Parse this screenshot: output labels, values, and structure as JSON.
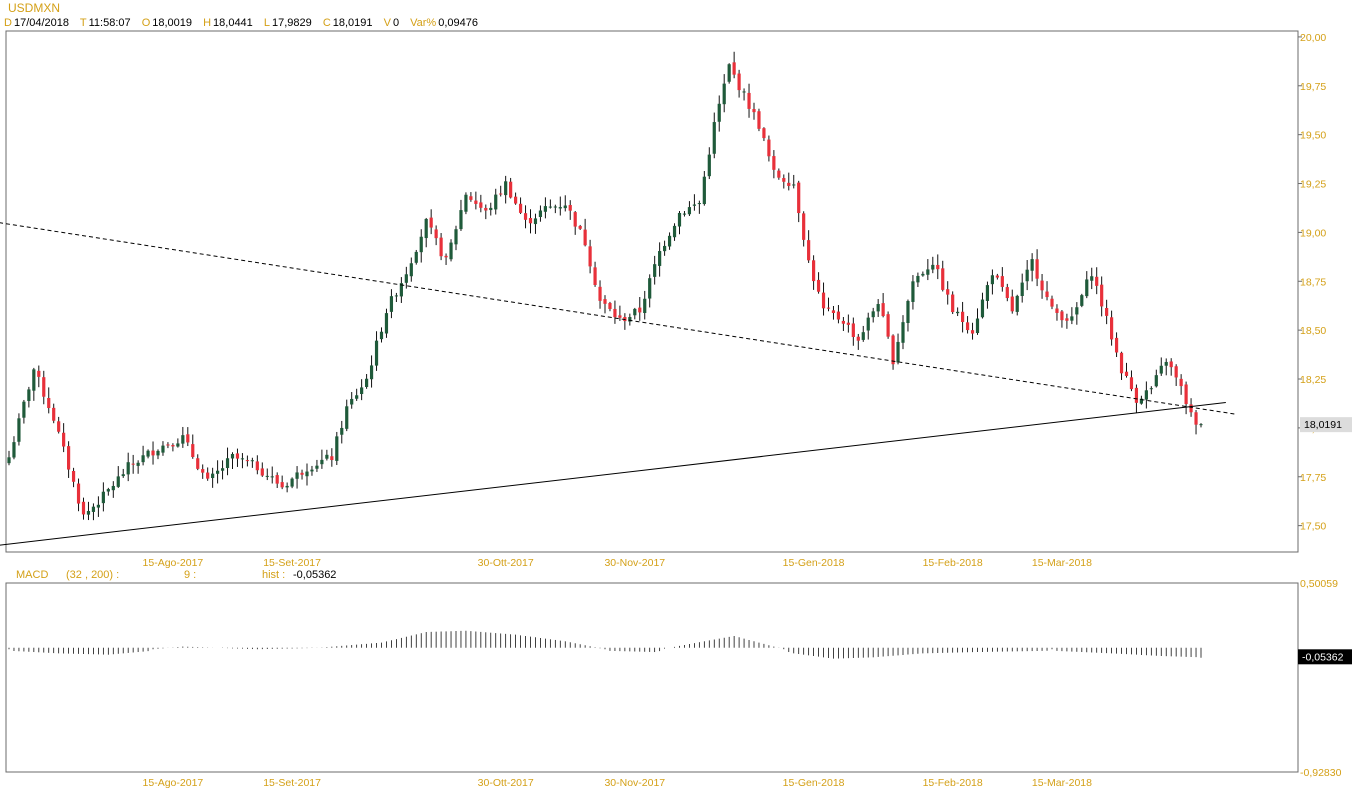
{
  "header": {
    "symbol": "USDMXN",
    "fields": [
      {
        "key": "D",
        "value": "17/04/2018"
      },
      {
        "key": "T",
        "value": "11:58:07"
      },
      {
        "key": "O",
        "value": "18,0019"
      },
      {
        "key": "H",
        "value": "18,0441"
      },
      {
        "key": "L",
        "value": "17,9829"
      },
      {
        "key": "C",
        "value": "18,0191"
      },
      {
        "key": "V",
        "value": "0"
      },
      {
        "key": "Var%",
        "value": "0,09476"
      }
    ]
  },
  "macd_header": {
    "label": "MACD",
    "params": "(32 , 200) :",
    "signal": "9 :",
    "hist_label": "hist :",
    "hist_value": "-0,05362"
  },
  "colors": {
    "up": "#1f5a3a",
    "down": "#e8303a",
    "tick_label": "#d4a017",
    "panel_border": "#6b6b6b",
    "last_price_bg": "#dcdcdc",
    "macd_last_bg": "#000000"
  },
  "chart_data": [
    {
      "type": "candlestick",
      "title": "USDMXN",
      "ylim": [
        17.36,
        20.02
      ],
      "yticks": [
        "20,00",
        "19,75",
        "19,50",
        "19,25",
        "19,00",
        "18,75",
        "18,50",
        "18,25",
        "18,00",
        "17,75",
        "17,50"
      ],
      "ytick_values": [
        20.0,
        19.75,
        19.5,
        19.25,
        19.0,
        18.75,
        18.5,
        18.25,
        18.0,
        17.75,
        17.5
      ],
      "x_tick_labels": [
        "15-Ago-2017",
        "15-Set-2017",
        "30-Ott-2017",
        "30-Nov-2017",
        "15-Gen-2018",
        "15-Feb-2018",
        "15-Mar-2018"
      ],
      "x_tick_index": [
        33,
        57,
        100,
        126,
        162,
        190,
        212
      ],
      "last_price": "18,0191",
      "last_price_value": 18.0191,
      "close_path": [
        {
          "i": 0,
          "c": 17.85
        },
        {
          "i": 5,
          "c": 18.3
        },
        {
          "i": 9,
          "c": 18.05
        },
        {
          "i": 15,
          "c": 17.55
        },
        {
          "i": 19,
          "c": 17.65
        },
        {
          "i": 24,
          "c": 17.8
        },
        {
          "i": 30,
          "c": 17.9
        },
        {
          "i": 35,
          "c": 17.95
        },
        {
          "i": 40,
          "c": 17.72
        },
        {
          "i": 45,
          "c": 17.85
        },
        {
          "i": 50,
          "c": 17.8
        },
        {
          "i": 55,
          "c": 17.7
        },
        {
          "i": 60,
          "c": 17.8
        },
        {
          "i": 65,
          "c": 17.85
        },
        {
          "i": 68,
          "c": 18.1
        },
        {
          "i": 72,
          "c": 18.25
        },
        {
          "i": 76,
          "c": 18.6
        },
        {
          "i": 80,
          "c": 18.8
        },
        {
          "i": 84,
          "c": 19.05
        },
        {
          "i": 88,
          "c": 18.85
        },
        {
          "i": 92,
          "c": 19.2
        },
        {
          "i": 96,
          "c": 19.1
        },
        {
          "i": 100,
          "c": 19.25
        },
        {
          "i": 104,
          "c": 19.05
        },
        {
          "i": 108,
          "c": 19.12
        },
        {
          "i": 112,
          "c": 19.15
        },
        {
          "i": 116,
          "c": 18.95
        },
        {
          "i": 119,
          "c": 18.65
        },
        {
          "i": 123,
          "c": 18.55
        },
        {
          "i": 127,
          "c": 18.6
        },
        {
          "i": 131,
          "c": 18.9
        },
        {
          "i": 135,
          "c": 19.1
        },
        {
          "i": 139,
          "c": 19.15
        },
        {
          "i": 142,
          "c": 19.55
        },
        {
          "i": 145,
          "c": 19.85
        },
        {
          "i": 148,
          "c": 19.7
        },
        {
          "i": 151,
          "c": 19.55
        },
        {
          "i": 154,
          "c": 19.3
        },
        {
          "i": 158,
          "c": 19.25
        },
        {
          "i": 161,
          "c": 18.85
        },
        {
          "i": 164,
          "c": 18.6
        },
        {
          "i": 168,
          "c": 18.55
        },
        {
          "i": 171,
          "c": 18.45
        },
        {
          "i": 175,
          "c": 18.65
        },
        {
          "i": 178,
          "c": 18.35
        },
        {
          "i": 182,
          "c": 18.75
        },
        {
          "i": 186,
          "c": 18.85
        },
        {
          "i": 190,
          "c": 18.6
        },
        {
          "i": 194,
          "c": 18.5
        },
        {
          "i": 198,
          "c": 18.8
        },
        {
          "i": 202,
          "c": 18.6
        },
        {
          "i": 206,
          "c": 18.85
        },
        {
          "i": 210,
          "c": 18.6
        },
        {
          "i": 214,
          "c": 18.55
        },
        {
          "i": 218,
          "c": 18.8
        },
        {
          "i": 221,
          "c": 18.55
        },
        {
          "i": 224,
          "c": 18.3
        },
        {
          "i": 227,
          "c": 18.15
        },
        {
          "i": 230,
          "c": 18.2
        },
        {
          "i": 233,
          "c": 18.35
        },
        {
          "i": 236,
          "c": 18.2
        },
        {
          "i": 239,
          "c": 18.0
        },
        {
          "i": 240,
          "c": 18.02
        }
      ],
      "n_bars": 241,
      "trendlines": [
        {
          "style": "dashed",
          "from": {
            "i": -2,
            "v": 19.05
          },
          "to": {
            "i": 247,
            "v": 18.07
          }
        },
        {
          "style": "solid",
          "from": {
            "i": -2,
            "v": 17.4
          },
          "to": {
            "i": 245,
            "v": 18.13
          }
        }
      ]
    },
    {
      "type": "histogram",
      "title": "MACD",
      "ylim": [
        -0.9283,
        0.50059
      ],
      "yticks": [
        "0,50059",
        "-0,92830"
      ],
      "ytick_values": [
        0.50059,
        -0.9283
      ],
      "last_value": "-0,05362",
      "last_value_num": -0.05362,
      "x_tick_labels": [
        "15-Ago-2017",
        "15-Set-2017",
        "30-Ott-2017",
        "30-Nov-2017",
        "15-Gen-2018",
        "15-Feb-2018",
        "15-Mar-2018"
      ],
      "x_tick_index": [
        33,
        57,
        100,
        126,
        162,
        190,
        212
      ],
      "hist_path": [
        {
          "i": 0,
          "v": 0.0
        },
        {
          "i": 10,
          "v": -0.02
        },
        {
          "i": 20,
          "v": -0.03
        },
        {
          "i": 35,
          "v": 0.02
        },
        {
          "i": 50,
          "v": 0.0
        },
        {
          "i": 62,
          "v": 0.01
        },
        {
          "i": 75,
          "v": 0.05
        },
        {
          "i": 84,
          "v": 0.13
        },
        {
          "i": 92,
          "v": 0.14
        },
        {
          "i": 102,
          "v": 0.11
        },
        {
          "i": 112,
          "v": 0.06
        },
        {
          "i": 120,
          "v": 0.0
        },
        {
          "i": 130,
          "v": -0.01
        },
        {
          "i": 140,
          "v": 0.06
        },
        {
          "i": 146,
          "v": 0.1
        },
        {
          "i": 152,
          "v": 0.04
        },
        {
          "i": 158,
          "v": -0.02
        },
        {
          "i": 166,
          "v": -0.06
        },
        {
          "i": 174,
          "v": -0.05
        },
        {
          "i": 184,
          "v": -0.02
        },
        {
          "i": 195,
          "v": -0.01
        },
        {
          "i": 210,
          "v": 0.0
        },
        {
          "i": 222,
          "v": -0.02
        },
        {
          "i": 232,
          "v": -0.04
        },
        {
          "i": 240,
          "v": -0.05
        }
      ]
    }
  ]
}
